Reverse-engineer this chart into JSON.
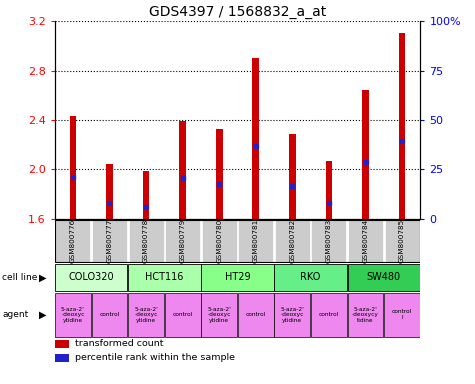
{
  "title": "GDS4397 / 1568832_a_at",
  "samples": [
    "GSM800776",
    "GSM800777",
    "GSM800778",
    "GSM800779",
    "GSM800780",
    "GSM800781",
    "GSM800782",
    "GSM800783",
    "GSM800784",
    "GSM800785"
  ],
  "transformed_counts": [
    2.43,
    2.04,
    1.99,
    2.39,
    2.33,
    2.9,
    2.29,
    2.07,
    2.64,
    3.1
  ],
  "percentile_values": [
    1.94,
    1.73,
    1.7,
    1.93,
    1.88,
    2.19,
    1.87,
    1.73,
    2.06,
    2.23
  ],
  "ymin": 1.6,
  "ymax": 3.2,
  "yticks_left": [
    1.6,
    2.0,
    2.4,
    2.8,
    3.2
  ],
  "yticks_right_vals": [
    0,
    25,
    50,
    75,
    100
  ],
  "bar_color": "#cc0000",
  "dot_color": "#2222cc",
  "bar_width": 0.18,
  "cell_lines": [
    {
      "name": "COLO320",
      "start": 0,
      "end": 2,
      "color": "#ccffcc"
    },
    {
      "name": "HCT116",
      "start": 2,
      "end": 4,
      "color": "#aaffaa"
    },
    {
      "name": "HT29",
      "start": 4,
      "end": 6,
      "color": "#88ff88"
    },
    {
      "name": "RKO",
      "start": 6,
      "end": 8,
      "color": "#66ee88"
    },
    {
      "name": "SW480",
      "start": 8,
      "end": 10,
      "color": "#33cc55"
    }
  ],
  "agents": [
    {
      "name": "5-aza-2'\n-deoxyc\nytidine",
      "color": "#ee88ee"
    },
    {
      "name": "control",
      "color": "#ee88ee"
    },
    {
      "name": "5-aza-2'\n-deoxyc\nytidine",
      "color": "#ee88ee"
    },
    {
      "name": "control",
      "color": "#ee88ee"
    },
    {
      "name": "5-aza-2'\n-deoxyc\nytidine",
      "color": "#ee88ee"
    },
    {
      "name": "control",
      "color": "#ee88ee"
    },
    {
      "name": "5-aza-2'\n-deoxyc\nytidine",
      "color": "#ee88ee"
    },
    {
      "name": "control",
      "color": "#ee88ee"
    },
    {
      "name": "5-aza-2'\n-deoxycy\ntidine",
      "color": "#ee88ee"
    },
    {
      "name": "control\nl",
      "color": "#ee88ee"
    }
  ],
  "sample_bg_color": "#cccccc",
  "title_fontsize": 10,
  "legend_items": [
    {
      "label": "transformed count",
      "color": "#cc0000"
    },
    {
      "label": "percentile rank within the sample",
      "color": "#2222cc"
    }
  ]
}
